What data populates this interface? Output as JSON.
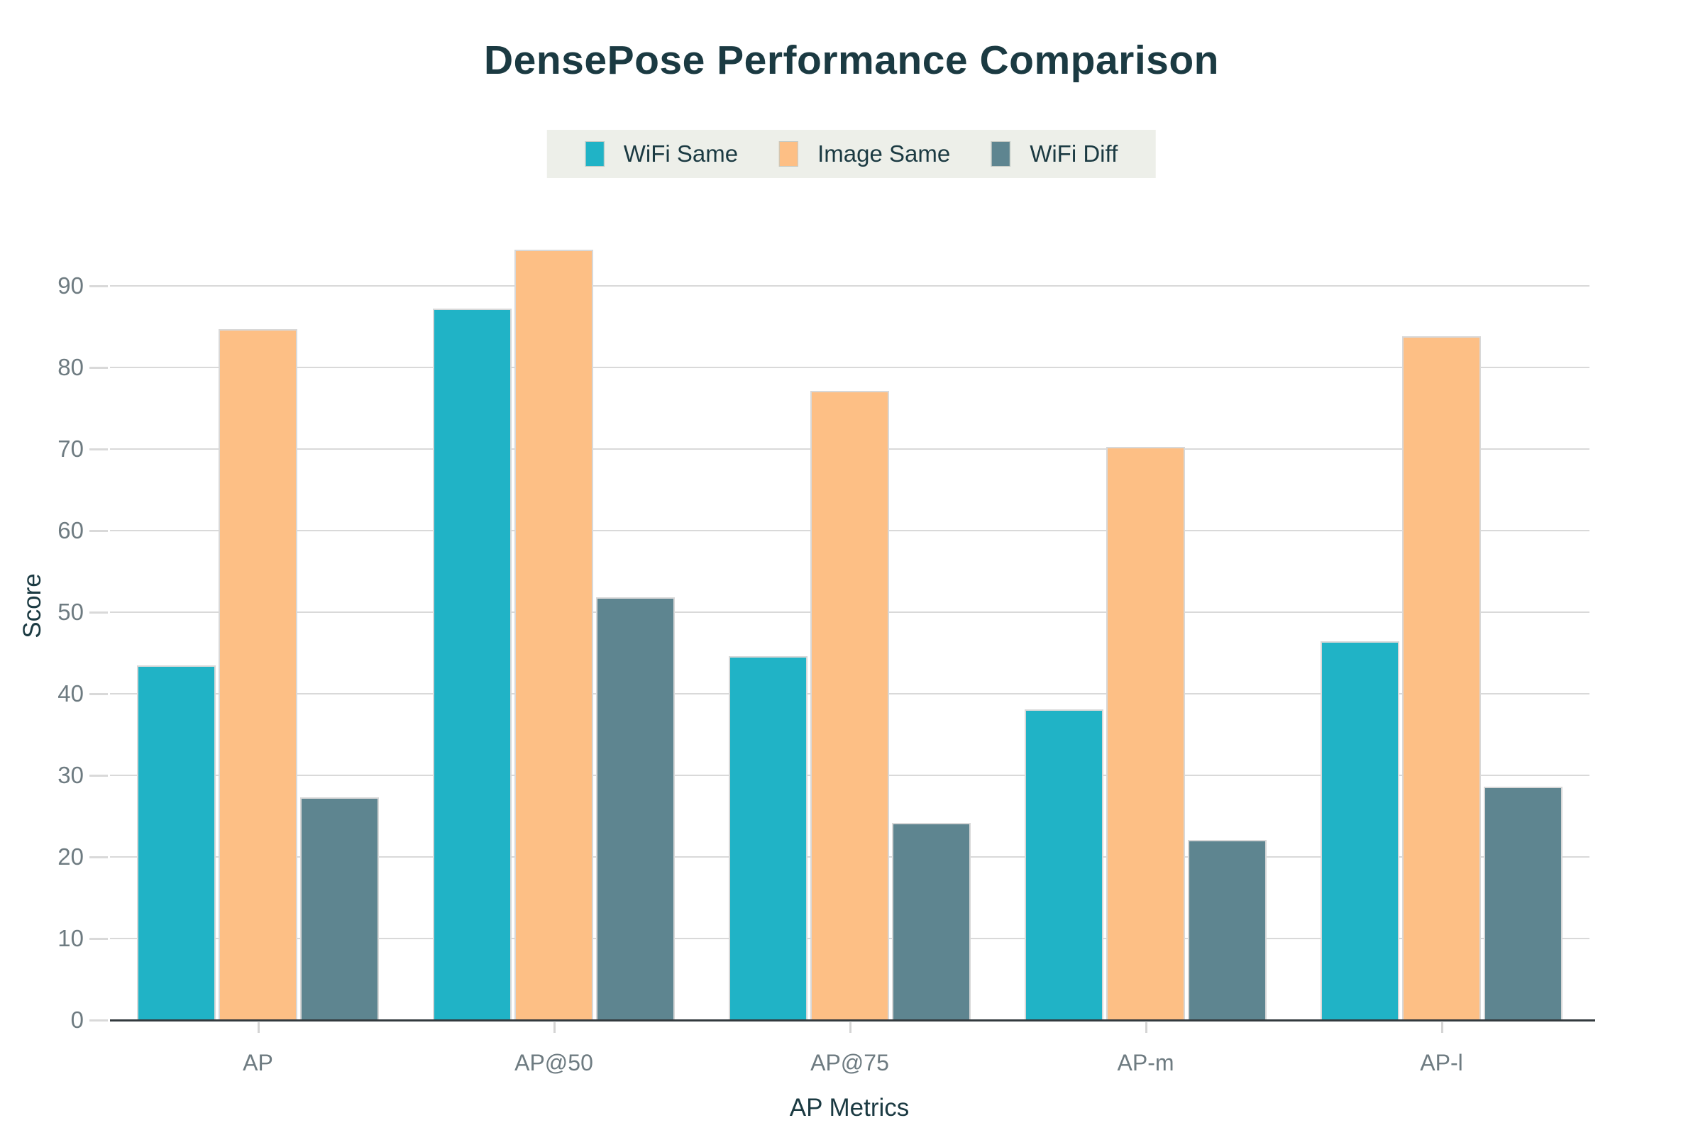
{
  "title": "DensePose Performance Comparison",
  "chart_data": {
    "type": "bar",
    "title": "DensePose Performance Comparison",
    "xlabel": "AP Metrics",
    "ylabel": "Score",
    "categories": [
      "AP",
      "AP@50",
      "AP@75",
      "AP-m",
      "AP-l"
    ],
    "series": [
      {
        "name": "WiFi Same",
        "color": "#20b3c6",
        "values": [
          43.5,
          87.2,
          44.6,
          38.1,
          46.4
        ]
      },
      {
        "name": "Image Same",
        "color": "#fdbf85",
        "values": [
          84.7,
          94.4,
          77.1,
          70.3,
          83.8
        ]
      },
      {
        "name": "WiFi Diff",
        "color": "#5e8590",
        "values": [
          27.3,
          51.8,
          24.2,
          22.1,
          28.6
        ]
      }
    ],
    "yticks": [
      0,
      10,
      20,
      30,
      40,
      50,
      60,
      70,
      80,
      90
    ],
    "ylim": [
      0,
      101.5
    ],
    "grid": true,
    "legend_position": "top-center"
  },
  "colors": {
    "background": "#ffffff",
    "title_text": "#1b3a42",
    "axis_text": "#6e7b81",
    "legend_bg": "#edefe9",
    "gridline": "#d9d9d9",
    "baseline": "#333a3e",
    "bar_border": "#d8d8d8"
  }
}
